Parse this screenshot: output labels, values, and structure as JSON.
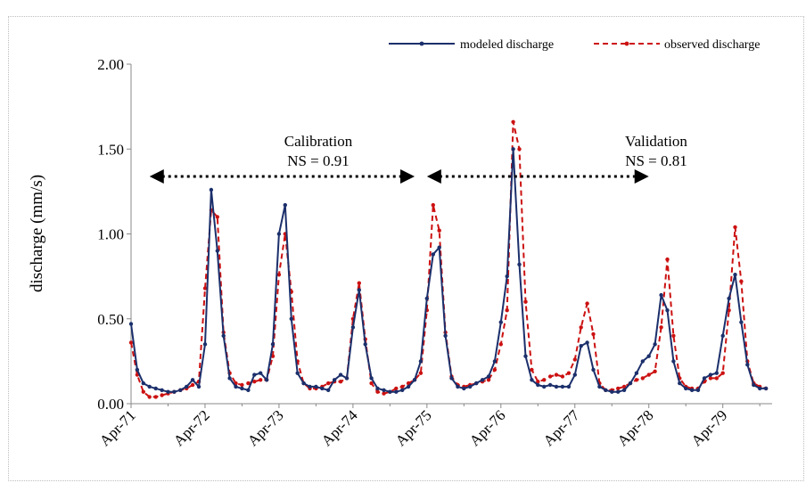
{
  "chart_data": {
    "type": "line",
    "ylabel": "discharge (mm/s)",
    "ylim": [
      0,
      2.0
    ],
    "y_ticks": [
      "0.00",
      "0.50",
      "1.00",
      "1.50",
      "2.00"
    ],
    "x_ticks": [
      "Apr-71",
      "Apr-72",
      "Apr-73",
      "Apr-74",
      "Apr-75",
      "Apr-76",
      "Apr-77",
      "Apr-78",
      "Apr-79"
    ],
    "x_unit": "month index (0 = Apr-71)",
    "xlim": [
      0,
      104
    ],
    "legend_position": "top-right",
    "series": [
      {
        "name": "modeled discharge",
        "color": "#1b2f6b",
        "style": "solid",
        "points": [
          [
            0,
            0.47
          ],
          [
            1,
            0.2
          ],
          [
            2,
            0.12
          ],
          [
            3,
            0.1
          ],
          [
            4,
            0.09
          ],
          [
            5,
            0.08
          ],
          [
            6,
            0.07
          ],
          [
            7,
            0.07
          ],
          [
            8,
            0.08
          ],
          [
            9,
            0.1
          ],
          [
            10,
            0.14
          ],
          [
            11,
            0.1
          ],
          [
            12,
            0.35
          ],
          [
            13,
            1.26
          ],
          [
            14,
            0.9
          ],
          [
            15,
            0.4
          ],
          [
            16,
            0.15
          ],
          [
            17,
            0.1
          ],
          [
            18,
            0.09
          ],
          [
            19,
            0.08
          ],
          [
            20,
            0.17
          ],
          [
            21,
            0.18
          ],
          [
            22,
            0.14
          ],
          [
            23,
            0.35
          ],
          [
            24,
            1.0
          ],
          [
            25,
            1.17
          ],
          [
            26,
            0.5
          ],
          [
            27,
            0.18
          ],
          [
            28,
            0.12
          ],
          [
            29,
            0.1
          ],
          [
            30,
            0.1
          ],
          [
            31,
            0.09
          ],
          [
            32,
            0.08
          ],
          [
            33,
            0.14
          ],
          [
            34,
            0.17
          ],
          [
            35,
            0.15
          ],
          [
            36,
            0.45
          ],
          [
            37,
            0.67
          ],
          [
            38,
            0.35
          ],
          [
            39,
            0.15
          ],
          [
            40,
            0.09
          ],
          [
            41,
            0.08
          ],
          [
            42,
            0.07
          ],
          [
            43,
            0.07
          ],
          [
            44,
            0.08
          ],
          [
            45,
            0.1
          ],
          [
            46,
            0.14
          ],
          [
            47,
            0.25
          ],
          [
            48,
            0.62
          ],
          [
            49,
            0.88
          ],
          [
            50,
            0.92
          ],
          [
            51,
            0.4
          ],
          [
            52,
            0.15
          ],
          [
            53,
            0.1
          ],
          [
            54,
            0.09
          ],
          [
            55,
            0.1
          ],
          [
            56,
            0.12
          ],
          [
            57,
            0.14
          ],
          [
            58,
            0.16
          ],
          [
            59,
            0.25
          ],
          [
            60,
            0.48
          ],
          [
            61,
            0.75
          ],
          [
            62,
            1.5
          ],
          [
            63,
            0.82
          ],
          [
            64,
            0.28
          ],
          [
            65,
            0.14
          ],
          [
            66,
            0.11
          ],
          [
            67,
            0.1
          ],
          [
            68,
            0.11
          ],
          [
            69,
            0.1
          ],
          [
            70,
            0.1
          ],
          [
            71,
            0.1
          ],
          [
            72,
            0.17
          ],
          [
            73,
            0.34
          ],
          [
            74,
            0.36
          ],
          [
            75,
            0.2
          ],
          [
            76,
            0.1
          ],
          [
            77,
            0.08
          ],
          [
            78,
            0.07
          ],
          [
            79,
            0.07
          ],
          [
            80,
            0.08
          ],
          [
            81,
            0.12
          ],
          [
            82,
            0.18
          ],
          [
            83,
            0.25
          ],
          [
            84,
            0.28
          ],
          [
            85,
            0.35
          ],
          [
            86,
            0.64
          ],
          [
            87,
            0.55
          ],
          [
            88,
            0.25
          ],
          [
            89,
            0.12
          ],
          [
            90,
            0.09
          ],
          [
            91,
            0.08
          ],
          [
            92,
            0.08
          ],
          [
            93,
            0.15
          ],
          [
            94,
            0.17
          ],
          [
            95,
            0.18
          ],
          [
            96,
            0.4
          ],
          [
            97,
            0.62
          ],
          [
            98,
            0.76
          ],
          [
            99,
            0.48
          ],
          [
            100,
            0.23
          ],
          [
            101,
            0.11
          ],
          [
            102,
            0.09
          ],
          [
            103,
            0.09
          ]
        ]
      },
      {
        "name": "observed discharge",
        "color": "#cc1111",
        "style": "dashed",
        "points": [
          [
            0,
            0.36
          ],
          [
            1,
            0.17
          ],
          [
            2,
            0.07
          ],
          [
            3,
            0.04
          ],
          [
            4,
            0.04
          ],
          [
            5,
            0.05
          ],
          [
            6,
            0.06
          ],
          [
            7,
            0.07
          ],
          [
            8,
            0.08
          ],
          [
            9,
            0.09
          ],
          [
            10,
            0.11
          ],
          [
            11,
            0.13
          ],
          [
            12,
            0.68
          ],
          [
            13,
            1.14
          ],
          [
            14,
            1.1
          ],
          [
            15,
            0.42
          ],
          [
            16,
            0.18
          ],
          [
            17,
            0.12
          ],
          [
            18,
            0.11
          ],
          [
            19,
            0.12
          ],
          [
            20,
            0.13
          ],
          [
            21,
            0.14
          ],
          [
            22,
            0.14
          ],
          [
            23,
            0.28
          ],
          [
            24,
            0.76
          ],
          [
            25,
            1.0
          ],
          [
            26,
            0.66
          ],
          [
            27,
            0.25
          ],
          [
            28,
            0.12
          ],
          [
            29,
            0.09
          ],
          [
            30,
            0.09
          ],
          [
            31,
            0.1
          ],
          [
            32,
            0.12
          ],
          [
            33,
            0.13
          ],
          [
            34,
            0.13
          ],
          [
            35,
            0.15
          ],
          [
            36,
            0.5
          ],
          [
            37,
            0.71
          ],
          [
            38,
            0.38
          ],
          [
            39,
            0.12
          ],
          [
            40,
            0.07
          ],
          [
            41,
            0.06
          ],
          [
            42,
            0.07
          ],
          [
            43,
            0.09
          ],
          [
            44,
            0.1
          ],
          [
            45,
            0.12
          ],
          [
            46,
            0.14
          ],
          [
            47,
            0.18
          ],
          [
            48,
            0.55
          ],
          [
            49,
            1.17
          ],
          [
            50,
            1.02
          ],
          [
            51,
            0.42
          ],
          [
            52,
            0.16
          ],
          [
            53,
            0.11
          ],
          [
            54,
            0.1
          ],
          [
            55,
            0.11
          ],
          [
            56,
            0.12
          ],
          [
            57,
            0.13
          ],
          [
            58,
            0.14
          ],
          [
            59,
            0.2
          ],
          [
            60,
            0.35
          ],
          [
            61,
            0.55
          ],
          [
            62,
            1.66
          ],
          [
            63,
            1.5
          ],
          [
            64,
            0.6
          ],
          [
            65,
            0.2
          ],
          [
            66,
            0.13
          ],
          [
            67,
            0.14
          ],
          [
            68,
            0.16
          ],
          [
            69,
            0.17
          ],
          [
            70,
            0.16
          ],
          [
            71,
            0.18
          ],
          [
            72,
            0.26
          ],
          [
            73,
            0.45
          ],
          [
            74,
            0.59
          ],
          [
            75,
            0.41
          ],
          [
            76,
            0.12
          ],
          [
            77,
            0.08
          ],
          [
            78,
            0.08
          ],
          [
            79,
            0.09
          ],
          [
            80,
            0.1
          ],
          [
            81,
            0.12
          ],
          [
            82,
            0.14
          ],
          [
            83,
            0.15
          ],
          [
            84,
            0.17
          ],
          [
            85,
            0.19
          ],
          [
            86,
            0.45
          ],
          [
            87,
            0.85
          ],
          [
            88,
            0.4
          ],
          [
            89,
            0.15
          ],
          [
            90,
            0.1
          ],
          [
            91,
            0.09
          ],
          [
            92,
            0.09
          ],
          [
            93,
            0.13
          ],
          [
            94,
            0.15
          ],
          [
            95,
            0.15
          ],
          [
            96,
            0.18
          ],
          [
            97,
            0.55
          ],
          [
            98,
            1.04
          ],
          [
            99,
            0.72
          ],
          [
            100,
            0.25
          ],
          [
            101,
            0.12
          ],
          [
            102,
            0.1
          ],
          [
            103,
            0.09
          ]
        ]
      }
    ],
    "annotations": [
      {
        "name": "calibration",
        "title": "Calibration",
        "stat": "NS = 0.91",
        "x_start": 3,
        "x_end": 46
      },
      {
        "name": "validation",
        "title": "Validation",
        "stat": "NS = 0.81",
        "x_start": 48,
        "x_end": 84
      }
    ]
  }
}
